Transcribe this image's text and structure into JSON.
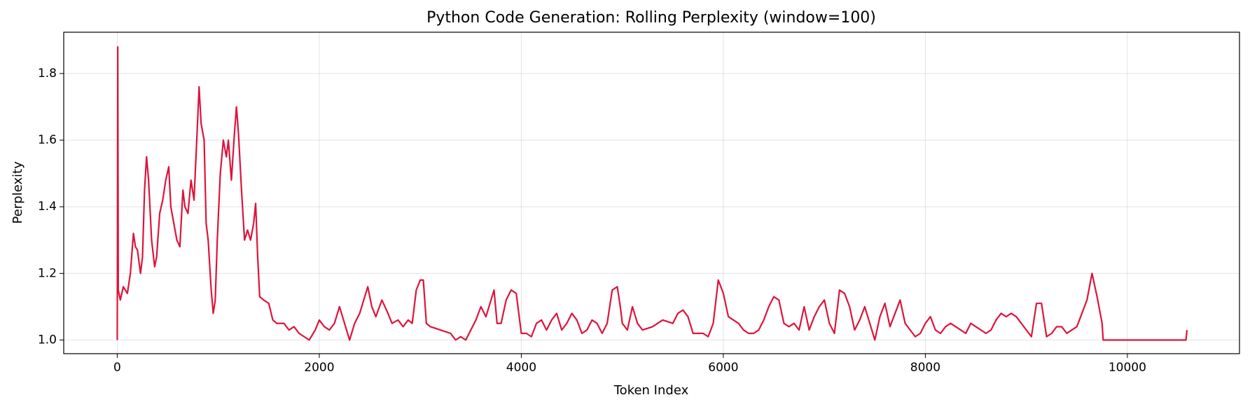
{
  "chart_data": {
    "type": "line",
    "title": "Python Code Generation: Rolling Perplexity (window=100)",
    "xlabel": "Token Index",
    "ylabel": "Perplexity",
    "color": "#dc143c",
    "grid": true,
    "xlim": [
      -530,
      11110
    ],
    "ylim": [
      0.959,
      1.924
    ],
    "xticks": [
      0,
      2000,
      4000,
      6000,
      8000,
      10000
    ],
    "yticks": [
      {
        "value": 1,
        "label": "1.0"
      },
      1.2,
      1.4,
      1.6,
      1.8
    ],
    "x": [
      0,
      5,
      10,
      30,
      60,
      100,
      130,
      160,
      180,
      200,
      230,
      250,
      270,
      290,
      310,
      340,
      370,
      390,
      420,
      450,
      480,
      510,
      530,
      560,
      590,
      620,
      650,
      670,
      700,
      730,
      760,
      790,
      810,
      830,
      860,
      880,
      900,
      930,
      950,
      970,
      990,
      1020,
      1050,
      1080,
      1100,
      1130,
      1160,
      1180,
      1200,
      1230,
      1260,
      1290,
      1320,
      1350,
      1370,
      1390,
      1410,
      1450,
      1500,
      1540,
      1580,
      1650,
      1700,
      1750,
      1800,
      1850,
      1900,
      1960,
      2000,
      2050,
      2100,
      2150,
      2200,
      2250,
      2300,
      2350,
      2400,
      2450,
      2480,
      2520,
      2560,
      2620,
      2680,
      2720,
      2780,
      2830,
      2880,
      2920,
      2960,
      3000,
      3030,
      3060,
      3100,
      3200,
      3300,
      3350,
      3400,
      3450,
      3500,
      3550,
      3600,
      3650,
      3700,
      3730,
      3760,
      3800,
      3850,
      3900,
      3950,
      4000,
      4050,
      4100,
      4150,
      4200,
      4250,
      4300,
      4350,
      4400,
      4450,
      4500,
      4550,
      4600,
      4650,
      4700,
      4750,
      4800,
      4850,
      4900,
      4950,
      4980,
      5000,
      5050,
      5100,
      5150,
      5200,
      5300,
      5400,
      5500,
      5550,
      5600,
      5650,
      5700,
      5800,
      5850,
      5900,
      5950,
      6000,
      6050,
      6100,
      6150,
      6200,
      6250,
      6300,
      6350,
      6400,
      6450,
      6500,
      6550,
      6600,
      6650,
      6700,
      6750,
      6800,
      6850,
      6900,
      6950,
      7000,
      7050,
      7100,
      7150,
      7200,
      7250,
      7300,
      7350,
      7400,
      7450,
      7500,
      7550,
      7600,
      7650,
      7700,
      7750,
      7800,
      7850,
      7900,
      7950,
      8000,
      8050,
      8100,
      8150,
      8200,
      8250,
      8300,
      8350,
      8400,
      8450,
      8500,
      8550,
      8600,
      8650,
      8700,
      8750,
      8800,
      8850,
      8900,
      8950,
      9000,
      9050,
      9100,
      9150,
      9200,
      9250,
      9300,
      9350,
      9400,
      9450,
      9500,
      9550,
      9600,
      9650,
      9700,
      9750,
      9760,
      10000,
      10500,
      10580,
      10590
    ],
    "values": [
      1.0,
      1.88,
      1.15,
      1.12,
      1.16,
      1.14,
      1.2,
      1.32,
      1.28,
      1.27,
      1.2,
      1.25,
      1.45,
      1.55,
      1.48,
      1.3,
      1.22,
      1.25,
      1.38,
      1.42,
      1.48,
      1.52,
      1.4,
      1.35,
      1.3,
      1.28,
      1.45,
      1.4,
      1.38,
      1.48,
      1.42,
      1.62,
      1.76,
      1.65,
      1.6,
      1.35,
      1.3,
      1.15,
      1.08,
      1.12,
      1.3,
      1.5,
      1.6,
      1.55,
      1.6,
      1.48,
      1.62,
      1.7,
      1.62,
      1.45,
      1.3,
      1.33,
      1.3,
      1.35,
      1.41,
      1.25,
      1.13,
      1.12,
      1.11,
      1.06,
      1.05,
      1.05,
      1.03,
      1.04,
      1.02,
      1.01,
      1.0,
      1.03,
      1.06,
      1.04,
      1.03,
      1.05,
      1.1,
      1.05,
      1.0,
      1.05,
      1.08,
      1.13,
      1.16,
      1.1,
      1.07,
      1.12,
      1.08,
      1.05,
      1.06,
      1.04,
      1.06,
      1.05,
      1.15,
      1.18,
      1.18,
      1.05,
      1.04,
      1.03,
      1.02,
      1.0,
      1.01,
      1.0,
      1.03,
      1.06,
      1.1,
      1.07,
      1.12,
      1.15,
      1.05,
      1.05,
      1.12,
      1.15,
      1.14,
      1.02,
      1.02,
      1.01,
      1.05,
      1.06,
      1.03,
      1.06,
      1.08,
      1.03,
      1.05,
      1.08,
      1.06,
      1.02,
      1.03,
      1.06,
      1.05,
      1.02,
      1.05,
      1.15,
      1.16,
      1.1,
      1.05,
      1.03,
      1.1,
      1.05,
      1.03,
      1.04,
      1.06,
      1.05,
      1.08,
      1.09,
      1.07,
      1.02,
      1.02,
      1.01,
      1.05,
      1.18,
      1.14,
      1.07,
      1.06,
      1.05,
      1.03,
      1.02,
      1.02,
      1.03,
      1.06,
      1.1,
      1.13,
      1.12,
      1.05,
      1.04,
      1.05,
      1.03,
      1.1,
      1.03,
      1.07,
      1.1,
      1.12,
      1.05,
      1.02,
      1.15,
      1.14,
      1.1,
      1.03,
      1.06,
      1.1,
      1.05,
      1.0,
      1.07,
      1.11,
      1.04,
      1.08,
      1.12,
      1.05,
      1.03,
      1.01,
      1.02,
      1.05,
      1.07,
      1.03,
      1.02,
      1.04,
      1.05,
      1.04,
      1.03,
      1.02,
      1.05,
      1.04,
      1.03,
      1.02,
      1.03,
      1.06,
      1.08,
      1.07,
      1.08,
      1.07,
      1.05,
      1.03,
      1.01,
      1.11,
      1.11,
      1.01,
      1.02,
      1.04,
      1.04,
      1.02,
      1.03,
      1.04,
      1.08,
      1.12,
      1.2,
      1.13,
      1.05,
      1.0,
      1.0,
      1.0,
      1.0,
      1.03
    ]
  }
}
